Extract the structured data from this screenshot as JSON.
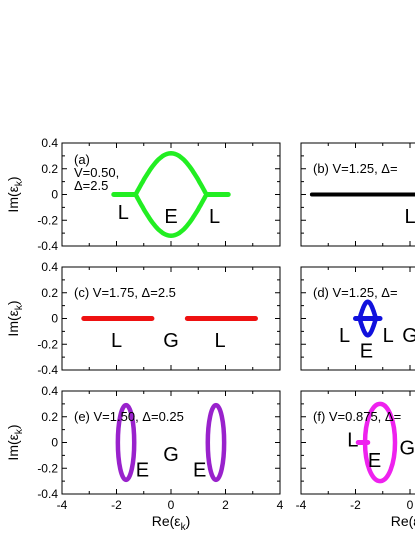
{
  "figure": {
    "ylabel": "Im(εk)",
    "xlabel": "Re(εk)",
    "xticks": [
      "-4",
      "-2",
      "0",
      "2",
      "4"
    ],
    "yticks": [
      "0.4",
      "0.2",
      "0",
      "-0.2",
      "-0.4"
    ]
  },
  "chart_data": [
    {
      "type": "line",
      "panel": "(a)",
      "annotation_lines": [
        "(a)",
        "V=0.50,",
        "Δ=2.5"
      ],
      "color": "#22ee22",
      "xlim": [
        -4,
        4
      ],
      "ylim": [
        -0.4,
        0.4
      ],
      "region_labels": [
        {
          "text": "L",
          "x": -1.75,
          "y": -0.13
        },
        {
          "text": "E",
          "x": 0.0,
          "y": -0.16
        },
        {
          "text": "L",
          "x": 1.6,
          "y": -0.16
        }
      ],
      "series": [
        {
          "kind": "segment",
          "x": [
            -2.1,
            -1.3
          ],
          "y": [
            0,
            0
          ]
        },
        {
          "kind": "segment",
          "x": [
            1.3,
            2.1
          ],
          "y": [
            0,
            0
          ]
        },
        {
          "kind": "lens",
          "x": [
            -1.3,
            1.3
          ],
          "peak": 0.32
        }
      ]
    },
    {
      "type": "line",
      "panel": "(b)",
      "annotation_lines": [
        "(b) V=1.25, Δ="
      ],
      "color": "#000000",
      "xlim": [
        -4,
        4
      ],
      "ylim": [
        -0.4,
        0.4
      ],
      "region_labels": [
        {
          "text": "L",
          "x": 0.0,
          "y": -0.16
        }
      ],
      "series": [
        {
          "kind": "segment",
          "x": [
            -3.6,
            0.2
          ],
          "y": [
            0,
            0
          ]
        }
      ]
    },
    {
      "type": "line",
      "panel": "(c)",
      "annotation_lines": [
        "(c) V=1.75, Δ=2.5"
      ],
      "color": "#ee1111",
      "xlim": [
        -4,
        4
      ],
      "ylim": [
        -0.4,
        0.4
      ],
      "region_labels": [
        {
          "text": "L",
          "x": -2.0,
          "y": -0.16
        },
        {
          "text": "G",
          "x": 0.0,
          "y": -0.16
        },
        {
          "text": "L",
          "x": 1.8,
          "y": -0.16
        }
      ],
      "series": [
        {
          "kind": "segment",
          "x": [
            -3.2,
            -0.7
          ],
          "y": [
            0,
            0
          ]
        },
        {
          "kind": "segment",
          "x": [
            0.6,
            3.1
          ],
          "y": [
            0,
            0
          ]
        }
      ]
    },
    {
      "type": "line",
      "panel": "(d)",
      "annotation_lines": [
        "(d) V=1.25, Δ="
      ],
      "color": "#1111dd",
      "xlim": [
        -4,
        4
      ],
      "ylim": [
        -0.4,
        0.4
      ],
      "region_labels": [
        {
          "text": "L",
          "x": -2.4,
          "y": -0.12
        },
        {
          "text": "E",
          "x": -1.6,
          "y": -0.24
        },
        {
          "text": "L",
          "x": -0.8,
          "y": -0.12
        },
        {
          "text": "G",
          "x": 0.0,
          "y": -0.12
        }
      ],
      "series": [
        {
          "kind": "segment",
          "x": [
            -2.0,
            -1.1
          ],
          "y": [
            0,
            0
          ]
        },
        {
          "kind": "lens",
          "x": [
            -1.85,
            -1.25
          ],
          "peak": 0.13
        }
      ]
    },
    {
      "type": "line",
      "panel": "(e)",
      "annotation_lines": [
        "(e) V=1.50, Δ=0.25"
      ],
      "color": "#9922cc",
      "xlim": [
        -4,
        4
      ],
      "ylim": [
        -0.4,
        0.4
      ],
      "region_labels": [
        {
          "text": "E",
          "x": -1.05,
          "y": -0.2
        },
        {
          "text": "G",
          "x": 0.0,
          "y": -0.08
        },
        {
          "text": "E",
          "x": 1.05,
          "y": -0.2
        }
      ],
      "series": [
        {
          "kind": "ellipse",
          "cx": -1.65,
          "cy": 0.0,
          "rx": 0.3,
          "ry": 0.29
        },
        {
          "kind": "ellipse",
          "cx": 1.65,
          "cy": 0.0,
          "rx": 0.3,
          "ry": 0.29
        }
      ]
    },
    {
      "type": "line",
      "panel": "(f)",
      "annotation_lines": [
        "(f) V=0.875, Δ="
      ],
      "color": "#ee22ee",
      "xlim": [
        -4,
        4
      ],
      "ylim": [
        -0.4,
        0.4
      ],
      "region_labels": [
        {
          "text": "L",
          "x": -2.1,
          "y": 0.03
        },
        {
          "text": "E",
          "x": -1.3,
          "y": -0.13
        },
        {
          "text": "G",
          "x": -0.1,
          "y": -0.03
        }
      ],
      "series": [
        {
          "kind": "segment",
          "x": [
            -1.9,
            -1.55
          ],
          "y": [
            0,
            0
          ]
        },
        {
          "kind": "ellipse",
          "cx": -1.1,
          "cy": 0.0,
          "rx": 0.55,
          "ry": 0.3
        }
      ]
    }
  ]
}
